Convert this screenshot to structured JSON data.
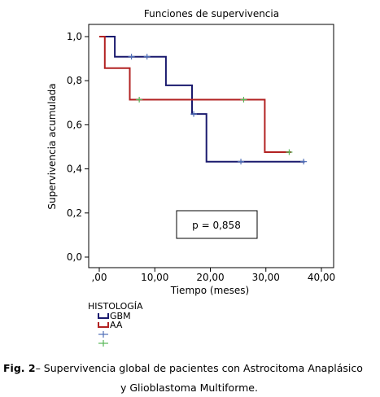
{
  "chart_data": {
    "type": "line",
    "title": "Funciones de supervivencia",
    "xlabel": "Tiempo (meses)",
    "ylabel": "Supervivencia acumulada",
    "xlim": [
      0,
      40
    ],
    "ylim": [
      0,
      1
    ],
    "x_ticks": [
      ",00",
      "10,00",
      "20,00",
      "30,00",
      "40,00"
    ],
    "y_ticks": [
      "0,0",
      "0,2",
      "0,4",
      "0,6",
      "0,8",
      "1,0"
    ],
    "annotation": "p = 0,858",
    "legend_title": "HISTOLOGÍA",
    "legend_placement": "bottom-left",
    "grid": false,
    "series": [
      {
        "name": "GBM",
        "color": "#1a1a6e",
        "steps": [
          [
            0,
            1.0
          ],
          [
            2.8,
            0.909
          ],
          [
            12.0,
            0.779
          ],
          [
            16.7,
            0.649
          ],
          [
            19.3,
            0.433
          ],
          [
            37.0,
            0.433
          ]
        ],
        "censored": [
          [
            5.8,
            0.909
          ],
          [
            8.6,
            0.909
          ],
          [
            17.0,
            0.649
          ],
          [
            25.5,
            0.433
          ],
          [
            36.8,
            0.433
          ]
        ]
      },
      {
        "name": "AA",
        "color": "#b22222",
        "steps": [
          [
            0,
            1.0
          ],
          [
            1.0,
            0.857
          ],
          [
            5.5,
            0.714
          ],
          [
            29.8,
            0.476
          ],
          [
            34.6,
            0.476
          ]
        ],
        "censored": [
          [
            7.2,
            0.714
          ],
          [
            26.0,
            0.714
          ],
          [
            34.2,
            0.476
          ]
        ]
      }
    ],
    "censor_legend": [
      {
        "series": "GBM",
        "color": "#4f6fb8"
      },
      {
        "series": "AA",
        "color": "#58b858"
      }
    ]
  },
  "caption": {
    "label": "Fig. 2",
    "line1": "– Supervivencia global de pacientes con Astrocitoma Anaplásico",
    "line2": "y Glioblastoma Multiforme."
  }
}
